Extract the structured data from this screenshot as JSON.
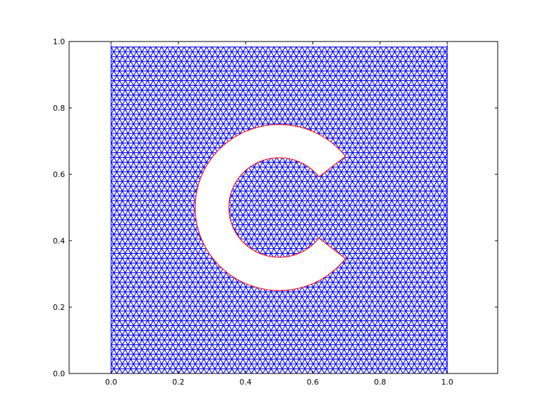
{
  "chart_data": {
    "type": "mesh",
    "title": "",
    "xlabel": "",
    "ylabel": "",
    "xlim": [
      -0.125,
      1.15
    ],
    "ylim": [
      0.0,
      1.0
    ],
    "x_ticks": [
      "0.0",
      "0.2",
      "0.4",
      "0.6",
      "0.8",
      "1.0"
    ],
    "y_ticks": [
      "0.0",
      "0.2",
      "0.4",
      "0.6",
      "0.8",
      "1.0"
    ],
    "x_tick_values": [
      0.0,
      0.2,
      0.4,
      0.6,
      0.8,
      1.0
    ],
    "y_tick_values": [
      0.0,
      0.2,
      0.4,
      0.6,
      0.8,
      1.0
    ],
    "grid": false,
    "mesh": {
      "domain": {
        "xmin": 0.0,
        "xmax": 1.0,
        "ymin": 0.0,
        "ymax": 0.99
      },
      "spacing": 0.0167,
      "color": "#0000ff"
    },
    "hole": {
      "shape": "C",
      "center": [
        0.5,
        0.5
      ],
      "outer_radius": 0.25,
      "inner_radius": 0.15,
      "opening_angle_deg": [
        -38,
        38
      ],
      "boundary_color": "#ff0000"
    }
  }
}
